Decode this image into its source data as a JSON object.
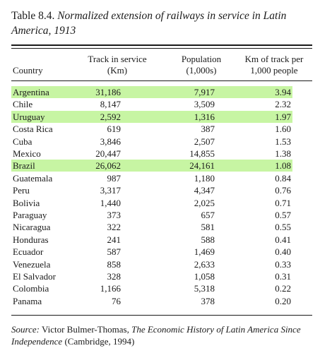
{
  "caption": {
    "label": "Table 8.4.",
    "title": "Normalized extension of railways in service in Latin America, 1913"
  },
  "columns": {
    "country": "Country",
    "track_line1": "Track in service",
    "track_line2": "(Km)",
    "pop_line1": "Population",
    "pop_line2": "(1,000s)",
    "km_line1": "Km of track per",
    "km_line2": "1,000 people"
  },
  "highlight_color": "#c7f5a3",
  "rows": [
    {
      "country": "Argentina",
      "track": "31,186",
      "population": "7,917",
      "km_per_1000": "3.94",
      "highlighted": true
    },
    {
      "country": "Chile",
      "track": "8,147",
      "population": "3,509",
      "km_per_1000": "2.32",
      "highlighted": false
    },
    {
      "country": "Uruguay",
      "track": "2,592",
      "population": "1,316",
      "km_per_1000": "1.97",
      "highlighted": true
    },
    {
      "country": "Costa Rica",
      "track": "619",
      "population": "387",
      "km_per_1000": "1.60",
      "highlighted": false
    },
    {
      "country": "Cuba",
      "track": "3,846",
      "population": "2,507",
      "km_per_1000": "1.53",
      "highlighted": false
    },
    {
      "country": "Mexico",
      "track": "20,447",
      "population": "14,855",
      "km_per_1000": "1.38",
      "highlighted": false
    },
    {
      "country": "Brazil",
      "track": "26,062",
      "population": "24,161",
      "km_per_1000": "1.08",
      "highlighted": true
    },
    {
      "country": "Guatemala",
      "track": "987",
      "population": "1,180",
      "km_per_1000": "0.84",
      "highlighted": false
    },
    {
      "country": "Peru",
      "track": "3,317",
      "population": "4,347",
      "km_per_1000": "0.76",
      "highlighted": false
    },
    {
      "country": "Bolivia",
      "track": "1,440",
      "population": "2,025",
      "km_per_1000": "0.71",
      "highlighted": false
    },
    {
      "country": "Paraguay",
      "track": "373",
      "population": "657",
      "km_per_1000": "0.57",
      "highlighted": false
    },
    {
      "country": "Nicaragua",
      "track": "322",
      "population": "581",
      "km_per_1000": "0.55",
      "highlighted": false
    },
    {
      "country": "Honduras",
      "track": "241",
      "population": "588",
      "km_per_1000": "0.41",
      "highlighted": false
    },
    {
      "country": "Ecuador",
      "track": "587",
      "population": "1,469",
      "km_per_1000": "0.40",
      "highlighted": false
    },
    {
      "country": "Venezuela",
      "track": "858",
      "population": "2,633",
      "km_per_1000": "0.33",
      "highlighted": false
    },
    {
      "country": "El Salvador",
      "track": "328",
      "population": "1,058",
      "km_per_1000": "0.31",
      "highlighted": false
    },
    {
      "country": "Colombia",
      "track": "1,166",
      "population": "5,318",
      "km_per_1000": "0.22",
      "highlighted": false
    },
    {
      "country": "Panama",
      "track": "76",
      "population": "378",
      "km_per_1000": "0.20",
      "highlighted": false
    }
  ],
  "source": {
    "label": "Source:",
    "author": "Victor Bulmer-Thomas,",
    "book_title": "The Economic History of Latin America Since Independence",
    "publication": "(Cambridge, 1994)"
  }
}
